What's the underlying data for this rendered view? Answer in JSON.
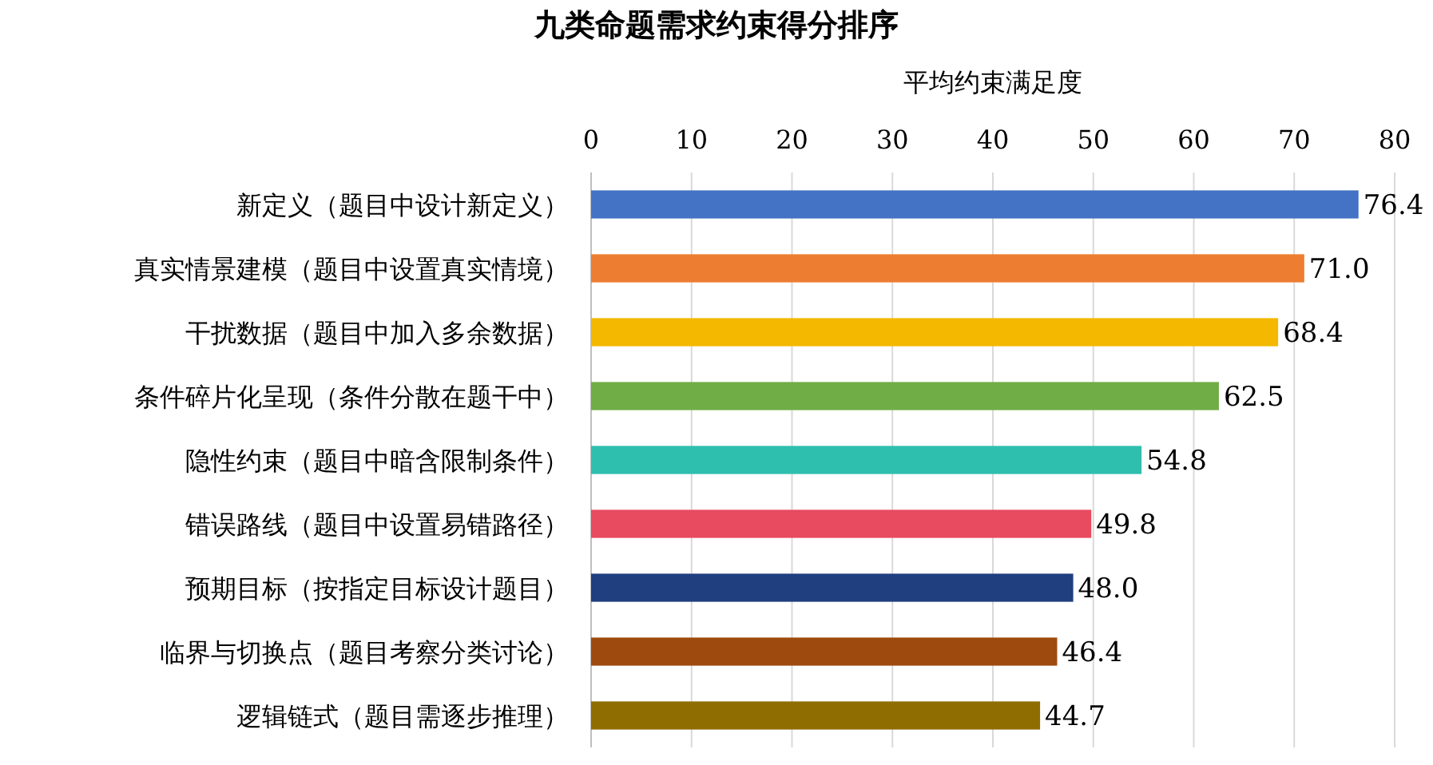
{
  "chart_data": {
    "type": "bar",
    "orientation": "horizontal",
    "title": "九类命题需求约束得分排序",
    "xlabel": "平均约束满足度",
    "categories": [
      "新定义（题目中设计新定义）",
      "真实情景建模（题目中设置真实情境）",
      "干扰数据（题目中加入多余数据）",
      "条件碎片化呈现（条件分散在题干中）",
      "隐性约束（题目中暗含限制条件）",
      "错误路线（题目中设置易错路径）",
      "预期目标（按指定目标设计题目）",
      "临界与切换点（题目考察分类讨论）",
      "逻辑链式（题目需逐步推理）"
    ],
    "values": [
      76.4,
      71.0,
      68.4,
      62.5,
      54.8,
      49.8,
      48.0,
      46.4,
      44.7
    ],
    "value_labels": [
      "76.4",
      "71.0",
      "68.4",
      "62.5",
      "54.8",
      "49.8",
      "48.0",
      "46.4",
      "44.7"
    ],
    "colors": [
      "#4472c4",
      "#ed7d31",
      "#f4b800",
      "#70ad47",
      "#2ebfae",
      "#e84a5f",
      "#1f3f7f",
      "#9e4a0f",
      "#8f6d00"
    ],
    "xlim": [
      0,
      80
    ],
    "xticks": [
      0,
      10,
      20,
      30,
      40,
      50,
      60,
      70,
      80
    ],
    "grid": "x"
  }
}
